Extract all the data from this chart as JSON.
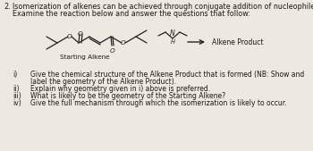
{
  "title_number": "2.",
  "title_line1": "Isomerization of alkenes can be achieved through conjugate addition of nucleophiles.",
  "title_line2": "Examine the reaction below and answer the questions that follow:",
  "label_starting": "Starting Alkene",
  "label_product": "Alkene Product",
  "questions": [
    [
      "i)",
      "Give the chemical structure of the Alkene Product that is formed (NB: Show and"
    ],
    [
      "",
      "label the geometry of the Alkene Product)."
    ],
    [
      "ii)",
      "Explain why geometry given in i) above is preferred."
    ],
    [
      "iii)",
      "What is likely to be the geometry of the Starting Alkene?"
    ],
    [
      "iv)",
      "Give the full mechanism through which the isomerization is likely to occur."
    ]
  ],
  "bg_color": "#ede8e0",
  "text_color": "#1a1a1a",
  "mol_color": "#222222",
  "font_size": 5.8,
  "title_font_size": 5.8
}
